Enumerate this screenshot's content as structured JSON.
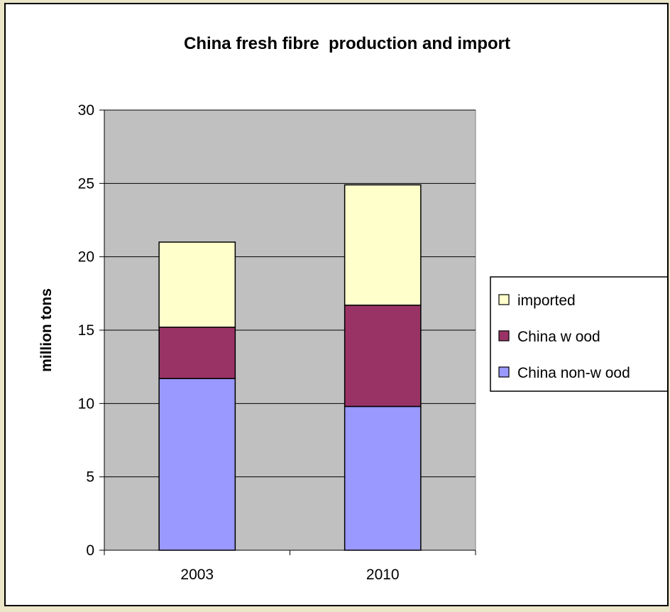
{
  "colors": {
    "plot_background": "#c0c0c0",
    "gridline": "#000000",
    "frame_background": "#ffffff",
    "page_background": "#e9e4c4"
  },
  "chart_data": {
    "type": "bar",
    "stacked": true,
    "title": "China fresh fibre  production and import",
    "xlabel": "",
    "ylabel": "million tons",
    "categories": [
      "2003",
      "2010"
    ],
    "ylim": [
      0,
      30
    ],
    "yticks": [
      0,
      5,
      10,
      15,
      20,
      25,
      30
    ],
    "grid": true,
    "legend_position": "right",
    "series": [
      {
        "name": "China non-w ood",
        "values": [
          11.7,
          9.8
        ],
        "color": "#9999ff"
      },
      {
        "name": "China w ood",
        "values": [
          3.5,
          6.9
        ],
        "color": "#993366"
      },
      {
        "name": "imported",
        "values": [
          5.8,
          8.2
        ],
        "color": "#ffffcc"
      }
    ],
    "legend_order": [
      "imported",
      "China w ood",
      "China non-w ood"
    ]
  }
}
